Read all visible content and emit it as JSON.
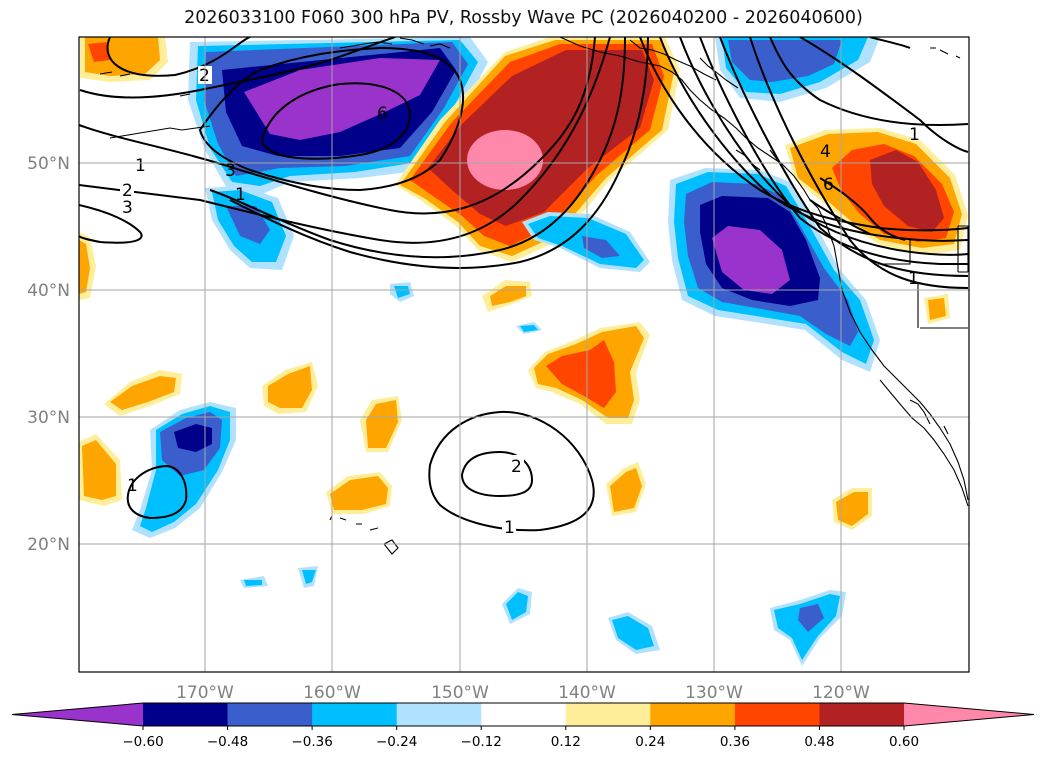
{
  "title": "2026033100 F060 300 hPa PV, Rossby Wave PC (2026040200 - 2026040600)",
  "axes": {
    "lon_ticks": [
      "170°W",
      "160°W",
      "150°W",
      "140°W",
      "130°W",
      "120°W"
    ],
    "lat_ticks": [
      "50°N",
      "40°N",
      "30°N",
      "20°N"
    ]
  },
  "colorbar": {
    "labels": [
      "−0.60",
      "−0.48",
      "−0.36",
      "−0.24",
      "−0.12",
      "0.12",
      "0.24",
      "0.36",
      "0.48",
      "0.60"
    ],
    "colors": [
      "#9933cc",
      "#00008b",
      "#3a5fcd",
      "#00bfff",
      "#b0e2ff",
      "#ffffff",
      "#ffee99",
      "#ffa500",
      "#ff4500",
      "#b22222",
      "#ff88aa"
    ]
  },
  "contour_labels": [
    "1",
    "2",
    "2",
    "3",
    "3",
    "6",
    "1",
    "4",
    "6",
    "1",
    "1",
    "1",
    "2",
    "1"
  ],
  "chart_data": {
    "type": "heatmap",
    "title": "2026033100 F060 300 hPa PV, Rossby Wave PC (2026040200 - 2026040600)",
    "field": "300 hPa PV Rossby wave principal component (shaded) with PV contours",
    "levels": [
      -0.6,
      -0.48,
      -0.36,
      -0.24,
      -0.12,
      0.12,
      0.24,
      0.36,
      0.48,
      0.6
    ],
    "lon_range": [
      -180,
      -110
    ],
    "lat_range": [
      10,
      60
    ]
  }
}
